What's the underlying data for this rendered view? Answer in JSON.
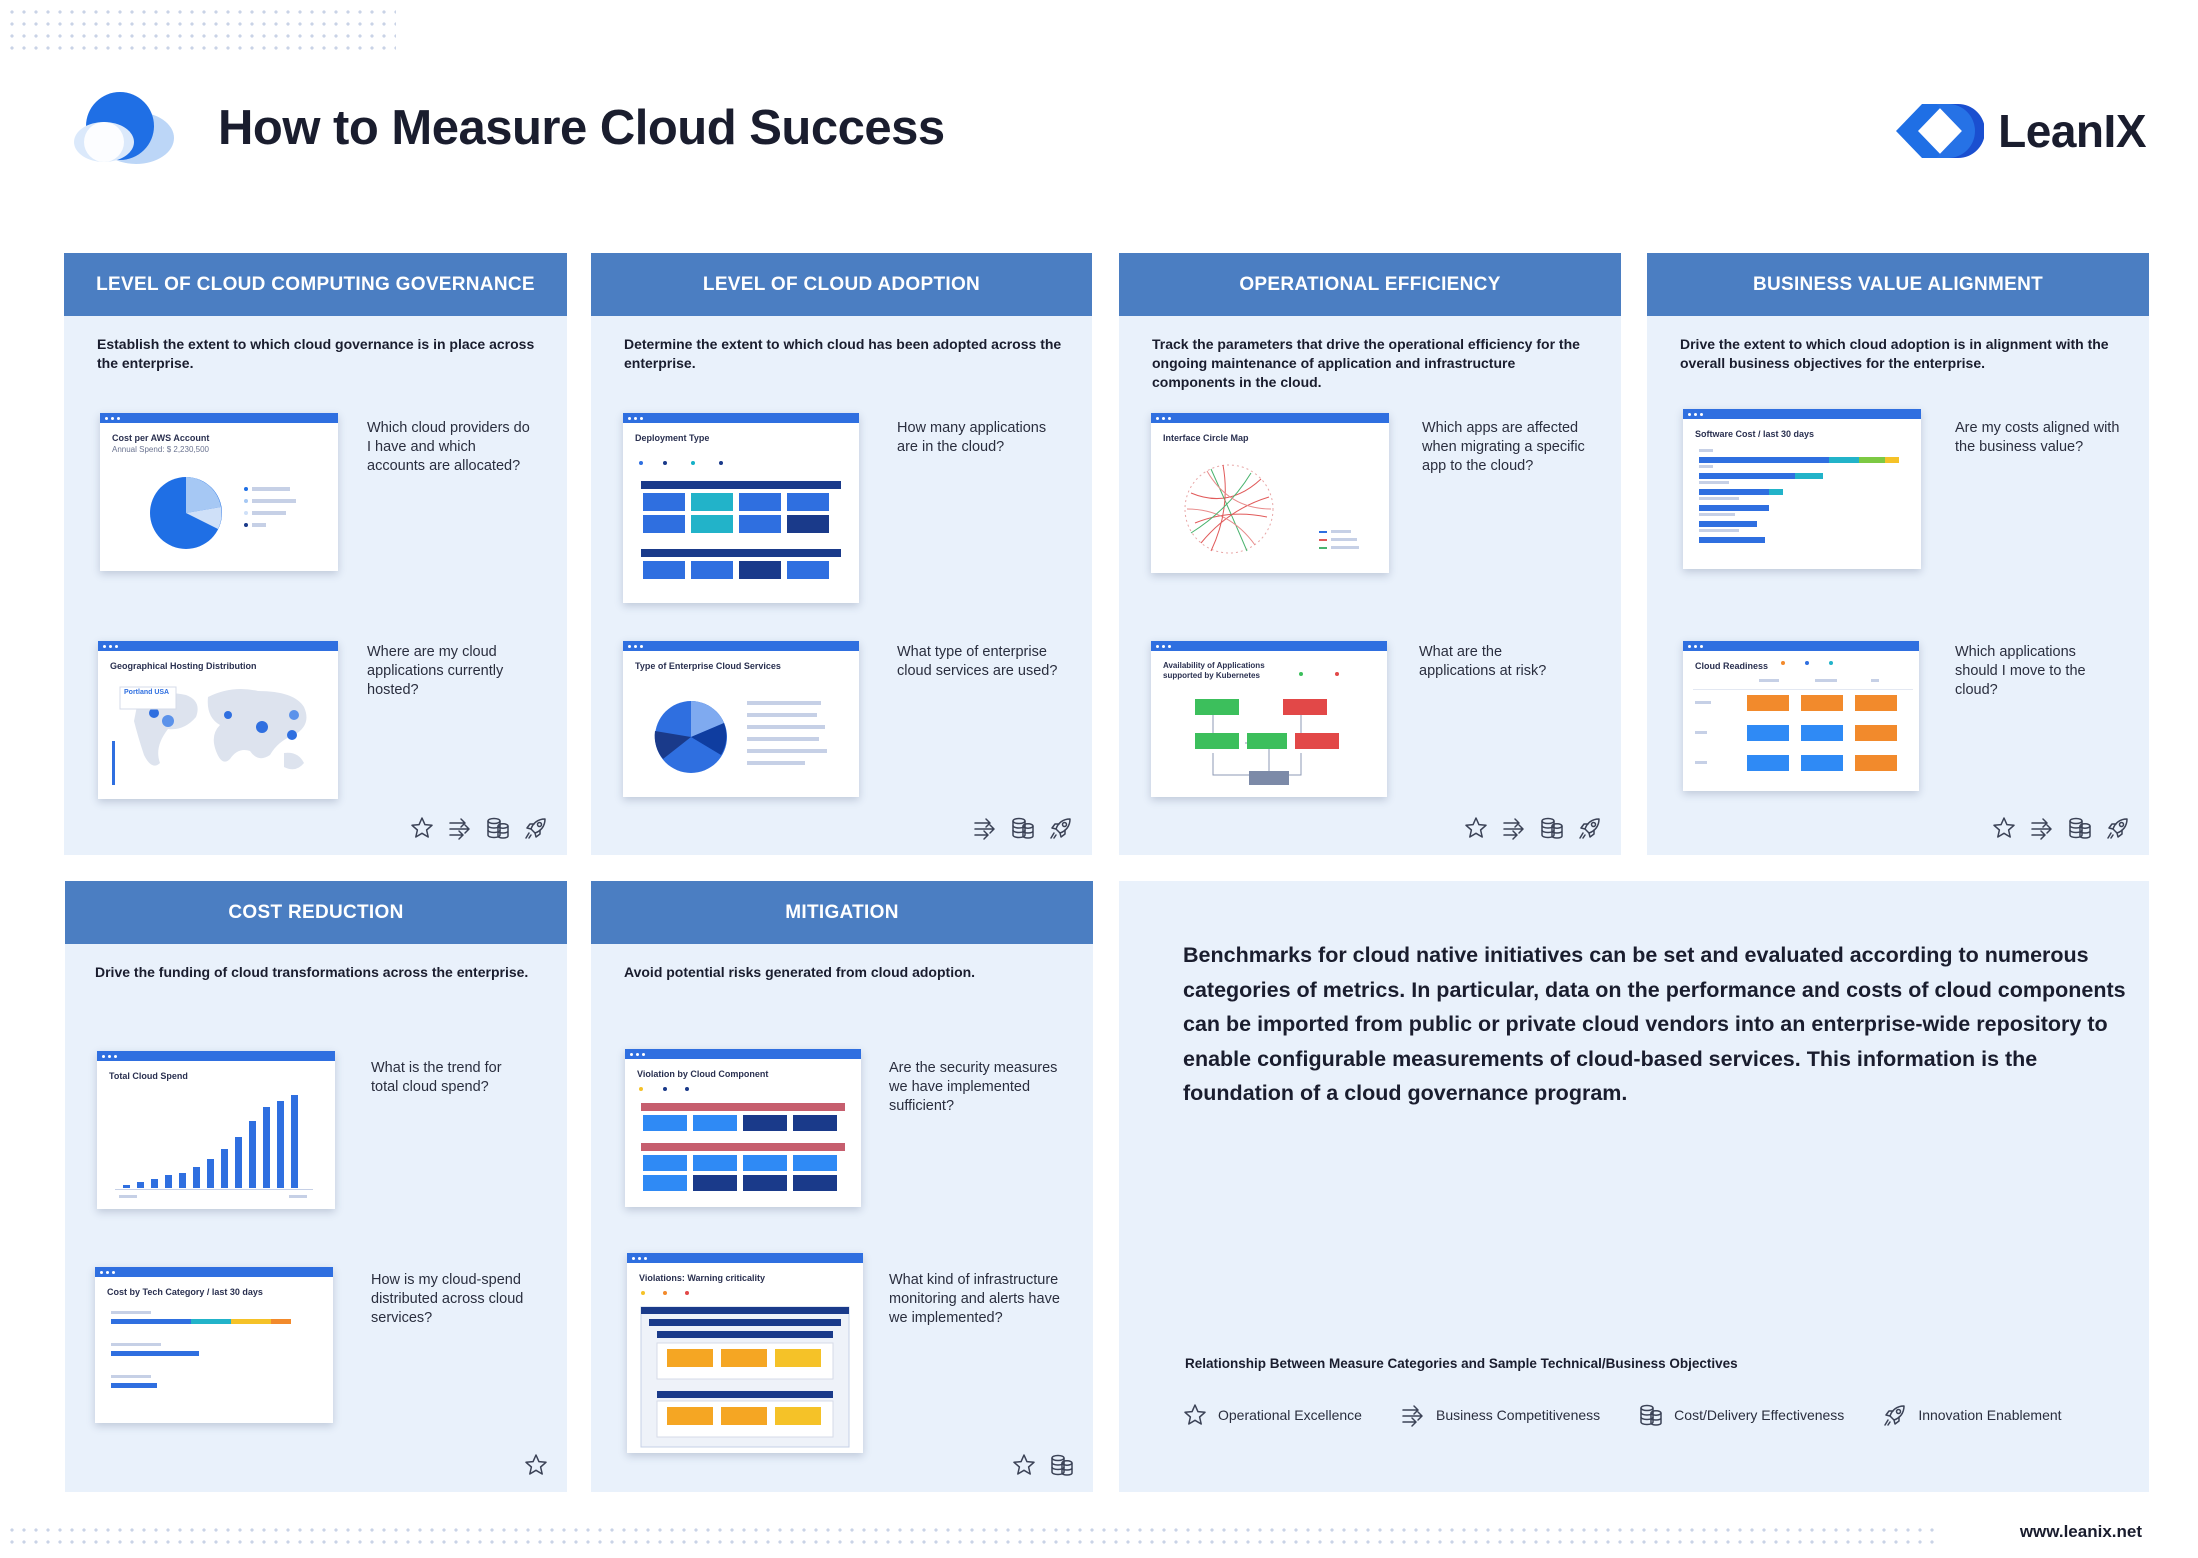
{
  "header": {
    "title": "How to Measure Cloud Success",
    "brand": "LeanIX",
    "logo_icon": "cloud-logo-icon",
    "brand_icon": "leanix-logo-icon"
  },
  "colors": {
    "header_bar": "#4b7ec2",
    "card_bg": "#e9f1fb",
    "accent": "#2f6fe0",
    "text": "#1a1d2e"
  },
  "cards": [
    {
      "title": "LEVEL OF CLOUD COMPUTING GOVERNANCE",
      "desc": "Establish the extent to which cloud governance is in place across the enterprise.",
      "items": [
        {
          "screen": "Cost per AWS Account",
          "sub": "Annual Spend: $ 2,230,500",
          "question": "Which cloud providers do I have and which accounts are allocated?"
        },
        {
          "screen": "Geographical Hosting Distribution",
          "sub": "Portland USA",
          "question": "Where are my cloud applications currently hosted?"
        }
      ],
      "icons": [
        "star-icon",
        "arrows-icon",
        "coins-icon",
        "rocket-icon"
      ]
    },
    {
      "title": "LEVEL OF CLOUD ADOPTION",
      "desc": "Determine the extent to which cloud has been adopted across the enterprise.",
      "items": [
        {
          "screen": "Deployment Type",
          "question": "How many applications are in the cloud?"
        },
        {
          "screen": "Type of Enterprise Cloud Services",
          "question": "What type of enterprise cloud services are used?"
        }
      ],
      "icons": [
        "arrows-icon",
        "coins-icon",
        "rocket-icon"
      ]
    },
    {
      "title": "OPERATIONAL EFFICIENCY",
      "desc": "Track the parameters that drive the operational efficiency for the ongoing maintenance of application and infrastructure components in the cloud.",
      "items": [
        {
          "screen": "Interface Circle Map",
          "question": "Which apps are affected when migrating a specific app to the cloud?"
        },
        {
          "screen": "Availability of Applications supported by Kubernetes",
          "question": "What are the applications at risk?"
        }
      ],
      "icons": [
        "star-icon",
        "arrows-icon",
        "coins-icon",
        "rocket-icon"
      ]
    },
    {
      "title": "BUSINESS VALUE ALIGNMENT",
      "desc": "Drive the extent to which cloud adoption is in alignment with the overall business objectives for the enterprise.",
      "items": [
        {
          "screen": "Software Cost / last 30 days",
          "question": "Are my costs aligned with the business value?"
        },
        {
          "screen": "Cloud Readiness",
          "question": "Which applications should I move to the cloud?"
        }
      ],
      "icons": [
        "star-icon",
        "arrows-icon",
        "coins-icon",
        "rocket-icon"
      ]
    },
    {
      "title": "COST REDUCTION",
      "desc": "Drive the funding of cloud transformations across the enterprise.",
      "items": [
        {
          "screen": "Total Cloud Spend",
          "question": "What is the trend for total cloud spend?"
        },
        {
          "screen": "Cost by Tech Category / last 30 days",
          "question": "How is my cloud-spend distributed across cloud services?"
        }
      ],
      "icons": [
        "star-icon"
      ]
    },
    {
      "title": "MITIGATION",
      "desc": "Avoid potential risks generated from cloud adoption.",
      "items": [
        {
          "screen": "Violation by Cloud Component",
          "question": "Are the security measures we have implemented sufficient?"
        },
        {
          "screen": "Violations: Warning criticality",
          "question": "What kind of infrastructure monitoring and alerts have we implemented?"
        }
      ],
      "icons": [
        "star-icon",
        "coins-icon"
      ]
    }
  ],
  "benchmark": "Benchmarks for cloud native initiatives can be set and evaluated according to numerous categories of metrics. In particular, data on the performance and costs of cloud components can be imported from public or private cloud vendors into an enterprise-wide repository to enable configurable measurements of cloud-based services. This information is the foundation of a cloud governance program.",
  "relationship": {
    "title": "Relationship Between Measure Categories and Sample Technical/Business Objectives",
    "legend": [
      {
        "icon": "star-icon",
        "label": "Operational Excellence"
      },
      {
        "icon": "arrows-icon",
        "label": "Business Competitiveness"
      },
      {
        "icon": "coins-icon",
        "label": "Cost/Delivery Effectiveness"
      },
      {
        "icon": "rocket-icon",
        "label": "Innovation Enablement"
      }
    ]
  },
  "footer": {
    "url": "www.leanix.net"
  }
}
